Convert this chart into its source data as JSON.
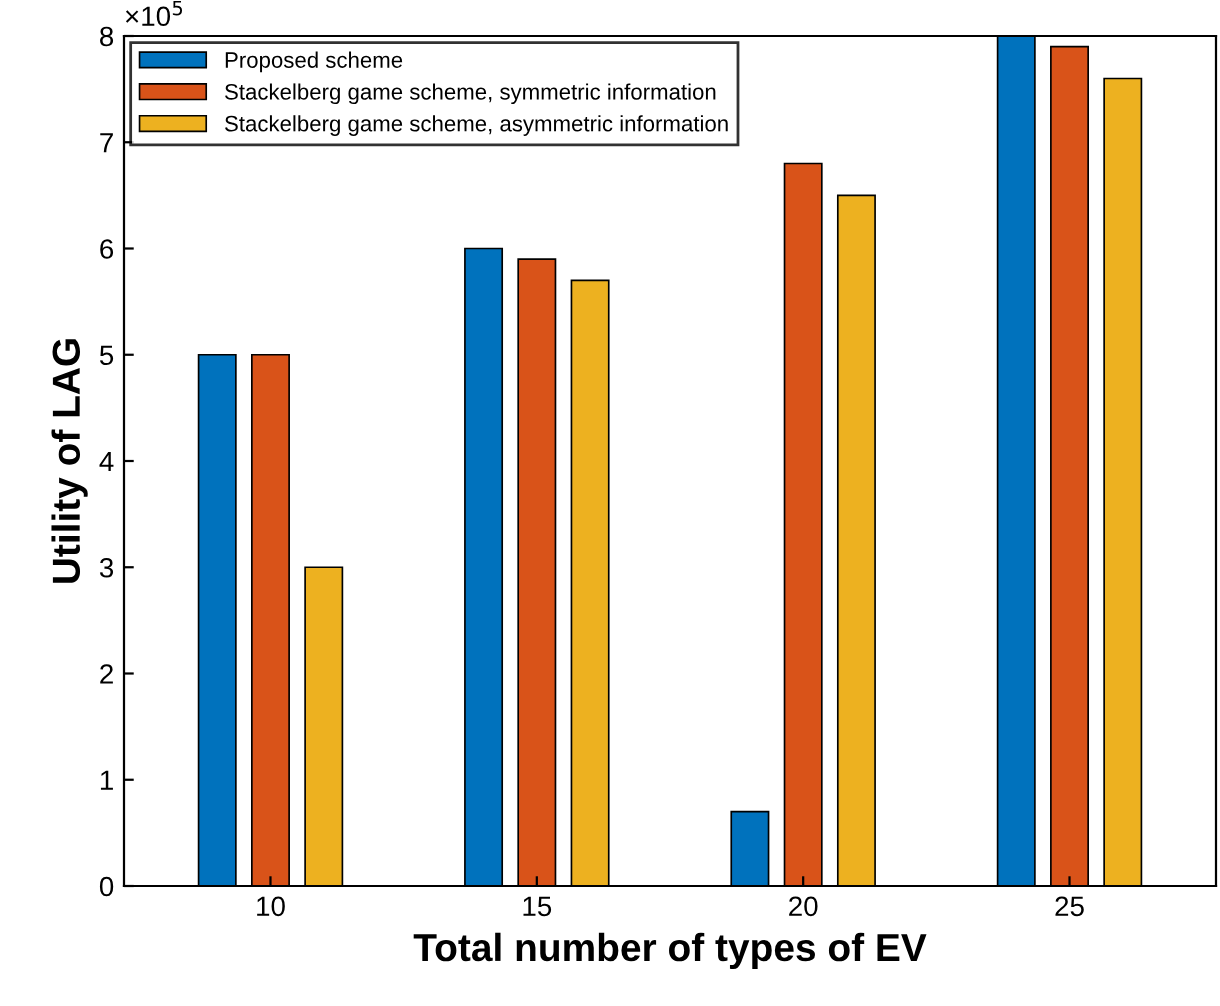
{
  "chart_data": {
    "type": "bar",
    "xlabel": "Total number of types of EV",
    "ylabel": "Utility of LAG",
    "categories": [
      "10",
      "15",
      "20",
      "25"
    ],
    "series": [
      {
        "name": "Proposed scheme",
        "color": "#0072bd",
        "values": [
          5,
          6,
          0.7,
          8
        ]
      },
      {
        "name": "Stackelberg game scheme, symmetric information",
        "color": "#d95319",
        "values": [
          5,
          5.9,
          6.8,
          7.9
        ]
      },
      {
        "name": "Stackelberg game scheme, asymmetric information",
        "color": "#edb120",
        "values": [
          3,
          5.7,
          6.5,
          7.6
        ]
      }
    ],
    "ylim": [
      0,
      8
    ],
    "yticks": [
      0,
      1,
      2,
      3,
      4,
      5,
      6,
      7,
      8
    ],
    "annotations": [
      "×10$^{5}$"
    ],
    "legend": "top left",
    "grid": false
  }
}
